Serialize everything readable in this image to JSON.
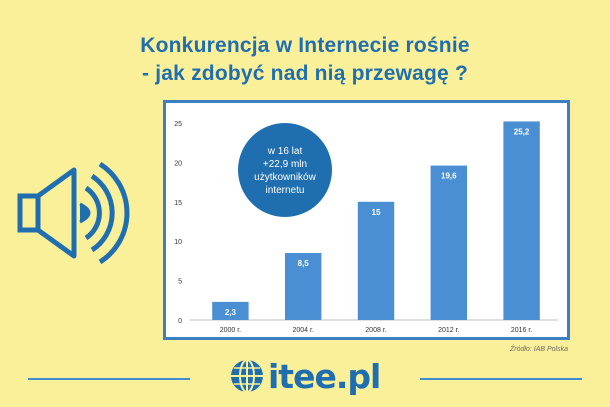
{
  "title": {
    "line1": "Konkurencja w Internecie rośnie",
    "line2": "- jak zdobyć nad nią przewagę ?"
  },
  "callout": {
    "line1": "w 16 lat",
    "line2": "+22,9 mln",
    "line3": "użytkowników",
    "line4": "internetu"
  },
  "source": "Źródło: IAB Polska",
  "brand": {
    "text": "itee.pl",
    "icon": "globe-icon"
  },
  "decor": {
    "icon": "speaker-icon"
  },
  "colors": {
    "background": "#fbf09a",
    "accent": "#1f6fb0",
    "bar": "#4a8fd4"
  },
  "chart_data": {
    "type": "bar",
    "categories": [
      "2000 r.",
      "2004 r.",
      "2008 r.",
      "2012 r.",
      "2016 r."
    ],
    "values": [
      2.3,
      8.5,
      15,
      19.6,
      25.2
    ],
    "value_labels": [
      "2,3",
      "8,5",
      "15",
      "19,6",
      "25,2"
    ],
    "yticks": [
      0,
      5,
      10,
      15,
      20,
      25
    ],
    "ylim": [
      0,
      25
    ],
    "grid": false,
    "legend": "none"
  }
}
